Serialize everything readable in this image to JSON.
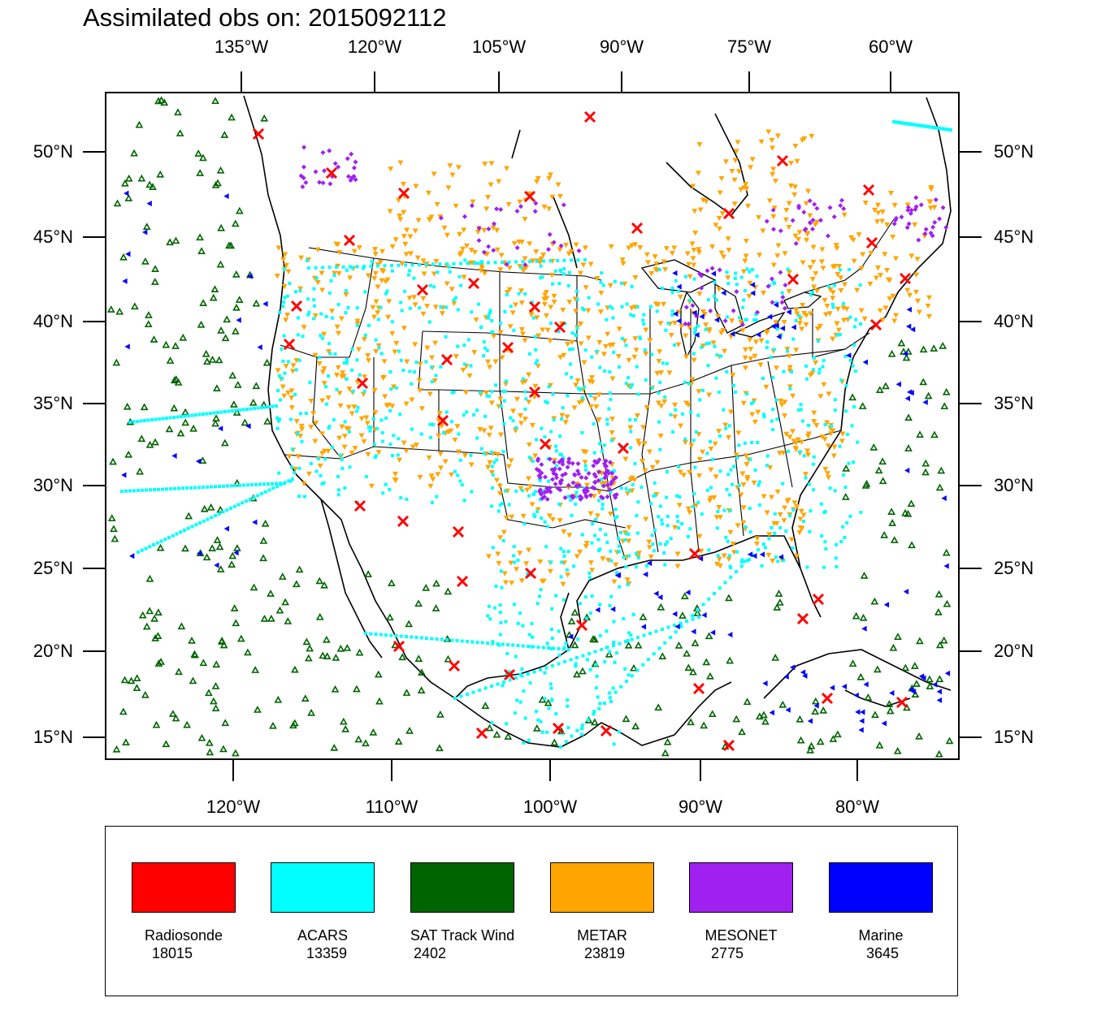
{
  "title": "Assimilated obs on: 2015092112",
  "axes": {
    "top_ticks": [
      "135°W",
      "120°W",
      "105°W",
      "90°W",
      "75°W",
      "60°W"
    ],
    "bottom_ticks": [
      "120°W",
      "110°W",
      "100°W",
      "90°W",
      "80°W"
    ],
    "left_ticks": [
      "50°N",
      "45°N",
      "40°N",
      "35°N",
      "30°N",
      "25°N",
      "20°N",
      "15°N"
    ],
    "right_ticks": [
      "50°N",
      "45°N",
      "40°N",
      "35°N",
      "30°N",
      "25°N",
      "20°N",
      "15°N"
    ]
  },
  "legend": [
    {
      "name": "Radiosonde",
      "count": "18015",
      "color": "#ff0000",
      "marker": "x-mark"
    },
    {
      "name": "ACARS",
      "count": "13359",
      "color": "#00ffff",
      "marker": "square-dot"
    },
    {
      "name": "SAT Track Wind",
      "count": "2402",
      "color": "#006400",
      "marker": "triangle-up"
    },
    {
      "name": "METAR",
      "count": "23819",
      "color": "#ffa500",
      "marker": "triangle-down"
    },
    {
      "name": "MESONET",
      "count": "2775",
      "color": "#a020f0",
      "marker": "diamond"
    },
    {
      "name": "Marine",
      "count": "3645",
      "color": "#0000ff",
      "marker": "triangle-left"
    }
  ],
  "colors": {
    "frame": "#000000",
    "coastline": "#000000",
    "background": "#ffffff"
  }
}
